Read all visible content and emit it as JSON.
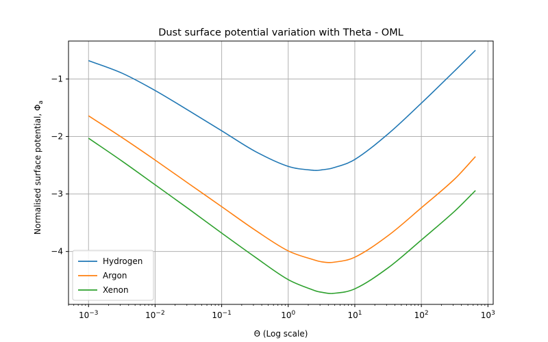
{
  "chart_data": {
    "type": "line",
    "title": "Dust surface potential variation with Theta - OML",
    "xlabel": "Θ (Log scale)",
    "ylabel": "Normalised surface potential, Φa",
    "ylabel_main": "Normalised surface potential, Φ",
    "ylabel_sub": "a",
    "xscale": "log",
    "xlim": [
      0.0005,
      1200
    ],
    "ylim": [
      -4.92,
      -0.34
    ],
    "x_ticks": [
      {
        "value": 0.001,
        "base": "10",
        "exp": "−3"
      },
      {
        "value": 0.01,
        "base": "10",
        "exp": "−2"
      },
      {
        "value": 0.1,
        "base": "10",
        "exp": "−1"
      },
      {
        "value": 1,
        "base": "10",
        "exp": "0"
      },
      {
        "value": 10,
        "base": "10",
        "exp": "1"
      },
      {
        "value": 100,
        "base": "10",
        "exp": "2"
      },
      {
        "value": 1000,
        "base": "10",
        "exp": "3"
      }
    ],
    "y_ticks": [
      {
        "value": -1,
        "label": "−1"
      },
      {
        "value": -2,
        "label": "−2"
      },
      {
        "value": -3,
        "label": "−3"
      },
      {
        "value": -4,
        "label": "−4"
      }
    ],
    "grid": true,
    "legend_position": "lower-left",
    "x": [
      0.001,
      0.0032,
      0.01,
      0.032,
      0.1,
      0.32,
      1,
      2.5,
      3.2,
      4.6,
      10,
      32,
      100,
      316,
      650
    ],
    "series": [
      {
        "name": "Hydrogen",
        "color": "#1f77b4",
        "values": [
          -0.68,
          -0.9,
          -1.2,
          -1.55,
          -1.9,
          -2.26,
          -2.52,
          -2.59,
          -2.58,
          -2.55,
          -2.4,
          -1.95,
          -1.42,
          -0.86,
          -0.5
        ]
      },
      {
        "name": "Argon",
        "color": "#ff7f0e",
        "values": [
          -1.64,
          -2.02,
          -2.41,
          -2.82,
          -3.22,
          -3.63,
          -3.99,
          -4.15,
          -4.18,
          -4.19,
          -4.1,
          -3.72,
          -3.24,
          -2.74,
          -2.35
        ]
      },
      {
        "name": "Xenon",
        "color": "#2ca02c",
        "values": [
          -2.03,
          -2.43,
          -2.84,
          -3.26,
          -3.68,
          -4.1,
          -4.49,
          -4.68,
          -4.71,
          -4.73,
          -4.65,
          -4.28,
          -3.8,
          -3.3,
          -2.94
        ]
      }
    ]
  }
}
